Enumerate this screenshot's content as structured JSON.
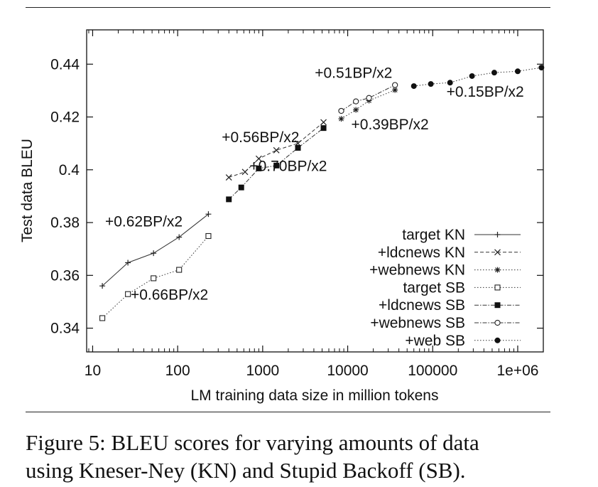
{
  "caption": {
    "line1": "Figure 5: BLEU scores for varying amounts of data",
    "line2": "using Kneser-Ney (KN) and Stupid Backoff (SB)."
  },
  "chart_data": {
    "type": "line",
    "xlabel": "LM training data size in million tokens",
    "ylabel": "Test data BLEU",
    "xscale": "log",
    "xlim": [
      8.5,
      2000000
    ],
    "ylim": [
      0.331,
      0.453
    ],
    "x_ticks": [
      10,
      100,
      1000,
      10000,
      100000,
      1000000
    ],
    "x_tick_labels": [
      "10",
      "100",
      "1000",
      "10000",
      "100000",
      "1e+06"
    ],
    "y_ticks": [
      0.34,
      0.36,
      0.38,
      0.4,
      0.42,
      0.44
    ],
    "y_tick_labels": [
      "0.34",
      "0.36",
      "0.38",
      "0.4",
      "0.42",
      "0.44"
    ],
    "grid": false,
    "legend_position": "bottom-right",
    "series": [
      {
        "name": "target KN",
        "dash": "",
        "marker": "plus",
        "x": [
          13,
          26,
          52,
          104,
          230
        ],
        "y": [
          0.356,
          0.3648,
          0.3684,
          0.3745,
          0.3832
        ]
      },
      {
        "name": "+ldcnews KN",
        "dash": "5,3",
        "marker": "x",
        "x": [
          400,
          620,
          900,
          1450,
          2600,
          5200
        ],
        "y": [
          0.3971,
          0.3992,
          0.4042,
          0.4074,
          0.41,
          0.418
        ]
      },
      {
        "name": "+webnews KN",
        "dash": "1.5,2.5",
        "marker": "star",
        "x": [
          8400,
          12500,
          17800,
          36000
        ],
        "y": [
          0.4193,
          0.4227,
          0.4262,
          0.4302
        ]
      },
      {
        "name": "target SB",
        "dash": "1.5,2.5",
        "marker": "square-open",
        "x": [
          13,
          26,
          52,
          104,
          230
        ],
        "y": [
          0.3438,
          0.3529,
          0.3589,
          0.3621,
          0.3749
        ]
      },
      {
        "name": "+ldcnews SB",
        "dash": "6,2,1.5,2",
        "marker": "square-filled",
        "x": [
          400,
          560,
          900,
          1450,
          2600,
          5200
        ],
        "y": [
          0.3888,
          0.3933,
          0.4005,
          0.4016,
          0.4083,
          0.4158
        ]
      },
      {
        "name": "+webnews SB",
        "dash": "6,2,1.5,2",
        "marker": "circle-open",
        "x": [
          8400,
          12500,
          17800,
          36000
        ],
        "y": [
          0.4223,
          0.4259,
          0.4272,
          0.4321
        ]
      },
      {
        "name": "+web SB",
        "dash": "1.5,2.5",
        "marker": "circle-filled",
        "x": [
          60000,
          95000,
          160000,
          290000,
          530000,
          1000000,
          1900000
        ],
        "y": [
          0.4317,
          0.4325,
          0.433,
          0.4355,
          0.4368,
          0.4373,
          0.4387
        ]
      }
    ],
    "annotations": [
      {
        "text": "+0.62BP/x2",
        "x": 14,
        "y": 0.3785
      },
      {
        "text": "+0.66BP/x2",
        "x": 28,
        "y": 0.3508
      },
      {
        "text": "+0.56BP/x2",
        "x": 330,
        "y": 0.4104
      },
      {
        "text": "+0.70BP/x2",
        "x": 700,
        "y": 0.3995
      },
      {
        "text": "+0.51BP/x2",
        "x": 4100,
        "y": 0.4348
      },
      {
        "text": "+0.39BP/x2",
        "x": 11000,
        "y": 0.4153
      },
      {
        "text": "+0.15BP/x2",
        "x": 145000,
        "y": 0.4277
      }
    ]
  }
}
